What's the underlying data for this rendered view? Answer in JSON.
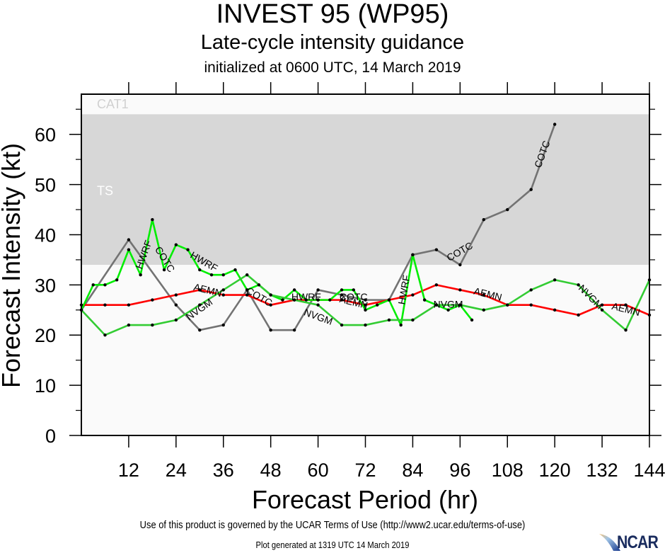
{
  "header": {
    "title": "INVEST 95 (WP95)",
    "subtitle": "Late-cycle intensity guidance",
    "init_line": "initialized at 0600 UTC, 14 March 2019"
  },
  "footer": {
    "terms": "Use of this product is governed by the UCAR Terms of Use (http://www2.ucar.edu/terms-of-use)",
    "generated": "Plot generated at 1319 UTC   14 March 2019",
    "logo": "NCAR"
  },
  "colors": {
    "band_cat1": "#fafafa",
    "band_ts": "#d7d7d7",
    "band_td": "#fafafa",
    "band_label": "#d0d0d0",
    "ts_label": "#ffffff"
  },
  "chart_data": {
    "type": "line",
    "title": "INVEST 95 (WP95)",
    "subtitle": "Late-cycle intensity guidance",
    "xlabel": "Forecast Period (hr)",
    "ylabel": "Forecast Intensity (kt)",
    "xlim": [
      0,
      144
    ],
    "ylim": [
      0,
      68
    ],
    "xticks": [
      12,
      24,
      36,
      48,
      60,
      72,
      84,
      96,
      108,
      120,
      132,
      144
    ],
    "yticks": [
      0,
      10,
      20,
      30,
      40,
      50,
      60
    ],
    "grid": false,
    "legend": "none (inline line labels)",
    "bands": [
      {
        "label": "CAT1",
        "from": 64,
        "to": 68
      },
      {
        "label": "TS",
        "from": 34,
        "to": 64
      },
      {
        "label": "",
        "from": 0,
        "to": 34
      }
    ],
    "series": [
      {
        "name": "COTC",
        "color": "#737373",
        "x": [
          0,
          12,
          24,
          30,
          36,
          42,
          48,
          54,
          60,
          66,
          72,
          78,
          84,
          90,
          96,
          102,
          108,
          114,
          120
        ],
        "values": [
          25,
          39,
          26,
          21,
          22,
          29,
          21,
          21,
          29,
          28,
          27,
          27,
          36,
          37,
          34,
          43,
          45,
          49,
          62
        ],
        "labels": [
          {
            "text": "COTC",
            "x": 21,
            "y": 35,
            "angle": 58
          },
          {
            "text": "COTC",
            "x": 45,
            "y": 27.5,
            "angle": 30
          },
          {
            "text": "COTC",
            "x": 69,
            "y": 27.5,
            "angle": 0
          },
          {
            "text": "COTC",
            "x": 96,
            "y": 36.5,
            "angle": -30
          },
          {
            "text": "COTC",
            "x": 117,
            "y": 56,
            "angle": -70
          }
        ]
      },
      {
        "name": "AEMN",
        "color": "#ff0000",
        "x": [
          0,
          6,
          12,
          18,
          24,
          30,
          36,
          42,
          48,
          54,
          60,
          66,
          72,
          78,
          84,
          90,
          96,
          102,
          108,
          114,
          120,
          126,
          132,
          138,
          144
        ],
        "values": [
          26,
          26,
          26,
          27,
          28,
          29,
          28,
          28,
          26,
          27,
          27,
          27,
          26,
          27,
          28,
          30,
          29,
          28,
          26,
          26,
          25,
          24,
          26,
          26,
          24
        ],
        "labels": [
          {
            "text": "AEMN",
            "x": 32,
            "y": 28.8,
            "angle": 14
          },
          {
            "text": "AEMN",
            "x": 69,
            "y": 26.4,
            "angle": 14
          },
          {
            "text": "AEMN",
            "x": 103,
            "y": 28,
            "angle": 14
          },
          {
            "text": "AEMN",
            "x": 138,
            "y": 25,
            "angle": 14
          }
        ]
      },
      {
        "name": "HWRF",
        "color": "#00ee00",
        "x": [
          0,
          3,
          6,
          9,
          12,
          15,
          18,
          21,
          24,
          27,
          30,
          33,
          36,
          39,
          42,
          45,
          48,
          51,
          54,
          57,
          60,
          63,
          66,
          69,
          72,
          75,
          78,
          81,
          84,
          87,
          90,
          93,
          96,
          99
        ],
        "values": [
          25,
          30,
          30,
          31,
          37,
          32,
          43,
          33,
          38,
          37,
          33,
          32,
          32,
          33,
          29,
          30,
          28,
          27,
          29,
          27,
          27,
          27,
          29,
          29,
          25,
          26,
          27,
          22,
          36,
          27,
          26,
          25,
          26,
          23
        ],
        "labels": [
          {
            "text": "HWRF",
            "x": 16,
            "y": 36,
            "angle": -70
          },
          {
            "text": "HWRF",
            "x": 31,
            "y": 34.5,
            "angle": 30
          },
          {
            "text": "HWRF",
            "x": 57,
            "y": 27.5,
            "angle": 0
          },
          {
            "text": "HWRF",
            "x": 82,
            "y": 29,
            "angle": -80
          }
        ]
      },
      {
        "name": "NVGM",
        "color": "#33cc33",
        "x": [
          0,
          6,
          12,
          18,
          24,
          30,
          36,
          42,
          48,
          54,
          60,
          66,
          72,
          78,
          84,
          90,
          96,
          102,
          108,
          114,
          120,
          126,
          132,
          138,
          144
        ],
        "values": [
          25,
          20,
          22,
          22,
          23,
          26,
          29,
          32,
          28,
          27,
          26,
          22,
          22,
          23,
          23,
          26,
          26,
          25,
          26,
          29,
          31,
          30,
          25,
          21,
          31
        ],
        "labels": [
          {
            "text": "NVGM",
            "x": 30,
            "y": 25,
            "angle": -35
          },
          {
            "text": "NVGM",
            "x": 60,
            "y": 23.5,
            "angle": 20
          },
          {
            "text": "NVGM",
            "x": 93,
            "y": 26,
            "angle": 0
          },
          {
            "text": "NVGM",
            "x": 129,
            "y": 27.5,
            "angle": 45
          }
        ]
      }
    ]
  }
}
